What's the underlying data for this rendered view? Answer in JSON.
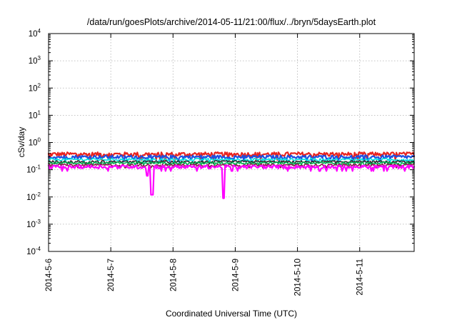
{
  "chart_data": {
    "type": "line",
    "title": "/data/run/goesPlots/archive/2014-05-11/21:00/flux/../bryn/5daysEarth.plot",
    "xlabel": "Coordinated Universal Time (UTC)",
    "ylabel": "cSv/day",
    "yscale": "log",
    "ylim": [
      0.0001,
      10000
    ],
    "xlim": [
      "2014-05-06T00:00",
      "2014-05-11T21:00"
    ],
    "grid": true,
    "x_ticks": [
      "2014-5-6",
      "2014-5-7",
      "2014-5-8",
      "2014-5-9",
      "2014-5-10",
      "2014-5-11"
    ],
    "y_ticks": [
      {
        "base": "10",
        "exp": "-4"
      },
      {
        "base": "10",
        "exp": "-3"
      },
      {
        "base": "10",
        "exp": "-2"
      },
      {
        "base": "10",
        "exp": "-1"
      },
      {
        "base": "10",
        "exp": "0"
      },
      {
        "base": "10",
        "exp": "1"
      },
      {
        "base": "10",
        "exp": "2"
      },
      {
        "base": "10",
        "exp": "3"
      },
      {
        "base": "10",
        "exp": "4"
      }
    ],
    "series": [
      {
        "color": "#e8241f",
        "baseline": 0.38,
        "noise": 0.18
      },
      {
        "color": "#1f4fe0",
        "baseline": 0.3,
        "noise": 0.15
      },
      {
        "color": "#00e0e0",
        "baseline": 0.24,
        "noise": 0.1
      },
      {
        "color": "#2a2a2a",
        "baseline": 0.2,
        "noise": 0.08
      },
      {
        "color": "#00b050",
        "baseline": 0.18,
        "noise": 0.08
      },
      {
        "color": "#8b1a4a",
        "baseline": 0.15,
        "noise": 0.1
      },
      {
        "color": "#ff00ff",
        "baseline": 0.13,
        "noise": 0.14,
        "dips": [
          {
            "date": "2014-05-07T14:00",
            "value": 0.06
          },
          {
            "date": "2014-05-07T16:00",
            "value": 0.012
          },
          {
            "date": "2014-05-08T19:30",
            "value": 0.009
          }
        ]
      }
    ]
  }
}
